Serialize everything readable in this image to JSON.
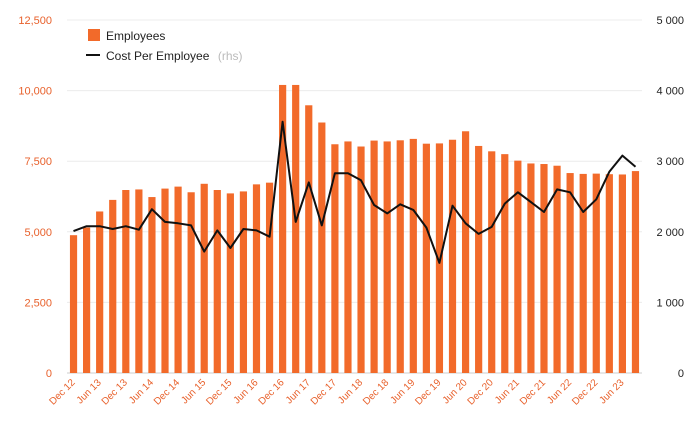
{
  "chart_data": {
    "type": "bar",
    "title": "",
    "xlabel": "",
    "ylabel": "",
    "categories": [
      "Dec 12",
      "Mar 13",
      "Jun 13",
      "Sep 13",
      "Dec 13",
      "Mar 14",
      "Jun 14",
      "Sep 14",
      "Dec 14",
      "Mar 15",
      "Jun 15",
      "Sep 15",
      "Dec 15",
      "Mar 16",
      "Jun 16",
      "Sep 16",
      "Dec 16",
      "Mar 17",
      "Jun 17",
      "Sep 17",
      "Dec 17",
      "Mar 18",
      "Jun 18",
      "Sep 18",
      "Dec 18",
      "Mar 19",
      "Jun 19",
      "Sep 19",
      "Dec 19",
      "Mar 20",
      "Jun 20",
      "Sep 20",
      "Dec 20",
      "Mar 21",
      "Jun 21",
      "Sep 21",
      "Dec 21",
      "Mar 22",
      "Jun 22",
      "Sep 22",
      "Dec 22",
      "Mar 23",
      "Jun 23",
      "Sep 23"
    ],
    "x_tick_labels": [
      "Dec 12",
      "Jun 13",
      "Dec 13",
      "Jun 14",
      "Dec 14",
      "Jun 15",
      "Dec 15",
      "Jun 16",
      "Dec 16",
      "Jun 17",
      "Dec 17",
      "Jun 18",
      "Dec 18",
      "Jun 19",
      "Dec 19",
      "Jun 20",
      "Dec 20",
      "Jun 21",
      "Dec 21",
      "Jun 22",
      "Dec 22",
      "Jun 23"
    ],
    "series": [
      {
        "name": "Employees",
        "type": "bar",
        "axis": "left",
        "color": "#f26a2a",
        "values": [
          4880,
          5150,
          5720,
          6130,
          6480,
          6500,
          6230,
          6530,
          6600,
          6400,
          6700,
          6480,
          6360,
          6430,
          6680,
          6740,
          10200,
          10200,
          9480,
          8870,
          8100,
          8200,
          8020,
          8230,
          8200,
          8240,
          8290,
          8120,
          8130,
          8260,
          8560,
          8040,
          7850,
          7750,
          7520,
          7420,
          7400,
          7340,
          7080,
          7050,
          7060,
          7040,
          7030,
          7150
        ]
      },
      {
        "name": "Cost Per Employee",
        "note": "(rhs)",
        "type": "line",
        "axis": "right",
        "color": "#111111",
        "values": [
          2010,
          2080,
          2080,
          2040,
          2080,
          2030,
          2320,
          2140,
          2120,
          2090,
          1720,
          2020,
          1770,
          2040,
          2020,
          1930,
          3560,
          2140,
          2700,
          2090,
          2830,
          2830,
          2730,
          2380,
          2260,
          2390,
          2310,
          2060,
          1560,
          2370,
          2120,
          1970,
          2070,
          2400,
          2560,
          2420,
          2280,
          2600,
          2560,
          2280,
          2460,
          2850,
          3080,
          2920
        ]
      }
    ],
    "ylim": [
      0,
      12500
    ],
    "y_ticks": [
      0,
      2500,
      5000,
      7500,
      10000,
      12500
    ],
    "y_tick_labels": [
      "0",
      "2,500",
      "5,000",
      "7,500",
      "10,000",
      "12,500"
    ],
    "y2lim": [
      0,
      5000
    ],
    "y2_ticks": [
      0,
      1000,
      2000,
      3000,
      4000,
      5000
    ],
    "y2_tick_labels": [
      "0",
      "1 000",
      "2 000",
      "3 000",
      "4 000",
      "5 000"
    ],
    "legend": {
      "position": "top-left",
      "entries": [
        {
          "label": "Employees",
          "note": ""
        },
        {
          "label": "Cost Per Employee",
          "note": "(rhs)"
        }
      ]
    },
    "grid": true
  }
}
